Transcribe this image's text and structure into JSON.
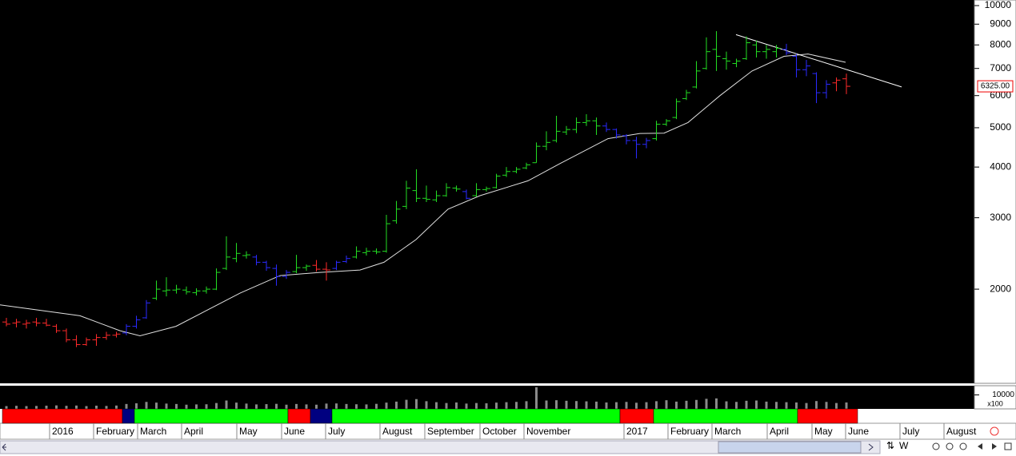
{
  "chart_data": {
    "type": "ohlc",
    "scale": "log",
    "x": [
      0,
      1,
      2,
      3,
      4,
      5,
      6,
      7,
      8,
      9,
      10,
      11,
      12,
      13,
      14,
      15,
      16,
      17,
      18,
      19,
      20,
      21,
      22,
      23,
      24,
      25,
      26,
      27,
      28,
      29,
      30,
      31,
      32,
      33,
      34,
      35,
      36,
      37,
      38,
      39,
      40,
      41,
      42,
      43,
      44,
      45,
      46,
      47,
      48,
      49,
      50,
      51,
      52,
      53,
      54,
      55,
      56,
      57,
      58,
      59,
      60,
      61,
      62,
      63,
      64,
      65,
      66,
      67,
      68,
      69,
      70,
      71,
      72,
      73,
      74,
      75,
      76,
      77,
      78,
      79,
      80,
      81,
      82,
      83,
      84
    ],
    "ohlc": [
      [
        1660,
        1700,
        1620,
        1640
      ],
      [
        1650,
        1690,
        1610,
        1660
      ],
      [
        1640,
        1680,
        1600,
        1650
      ],
      [
        1660,
        1700,
        1620,
        1650
      ],
      [
        1650,
        1690,
        1620,
        1630
      ],
      [
        1620,
        1640,
        1560,
        1580
      ],
      [
        1580,
        1600,
        1480,
        1500
      ],
      [
        1500,
        1540,
        1440,
        1460
      ],
      [
        1460,
        1520,
        1450,
        1500
      ],
      [
        1500,
        1550,
        1450,
        1520
      ],
      [
        1520,
        1570,
        1500,
        1540
      ],
      [
        1540,
        1570,
        1520,
        1550
      ],
      [
        1560,
        1640,
        1540,
        1620
      ],
      [
        1620,
        1720,
        1600,
        1680
      ],
      [
        1700,
        1880,
        1690,
        1850
      ],
      [
        1900,
        2100,
        1880,
        2000
      ],
      [
        1980,
        2140,
        1920,
        1990
      ],
      [
        1990,
        2050,
        1950,
        2000
      ],
      [
        1990,
        2030,
        1940,
        1970
      ],
      [
        1960,
        2010,
        1930,
        1980
      ],
      [
        1980,
        2030,
        1950,
        2000
      ],
      [
        2000,
        2250,
        1990,
        2200
      ],
      [
        2250,
        2700,
        2230,
        2400
      ],
      [
        2380,
        2600,
        2330,
        2450
      ],
      [
        2420,
        2480,
        2380,
        2430
      ],
      [
        2400,
        2430,
        2290,
        2330
      ],
      [
        2330,
        2350,
        2220,
        2260
      ],
      [
        2250,
        2300,
        2040,
        2150
      ],
      [
        2150,
        2230,
        2120,
        2200
      ],
      [
        2210,
        2430,
        2190,
        2260
      ],
      [
        2260,
        2300,
        2220,
        2280
      ],
      [
        2290,
        2360,
        2210,
        2240
      ],
      [
        2240,
        2330,
        2100,
        2230
      ],
      [
        2250,
        2350,
        2230,
        2330
      ],
      [
        2340,
        2420,
        2320,
        2380
      ],
      [
        2400,
        2550,
        2380,
        2480
      ],
      [
        2460,
        2530,
        2420,
        2480
      ],
      [
        2480,
        2520,
        2440,
        2470
      ],
      [
        2480,
        3050,
        2460,
        2900
      ],
      [
        2950,
        3300,
        2900,
        3150
      ],
      [
        3200,
        3700,
        3150,
        3550
      ],
      [
        3500,
        3950,
        3280,
        3350
      ],
      [
        3350,
        3600,
        3280,
        3330
      ],
      [
        3320,
        3500,
        3280,
        3400
      ],
      [
        3400,
        3650,
        3380,
        3560
      ],
      [
        3550,
        3600,
        3480,
        3530
      ],
      [
        3480,
        3520,
        3330,
        3350
      ],
      [
        3400,
        3650,
        3380,
        3520
      ],
      [
        3520,
        3580,
        3480,
        3540
      ],
      [
        3560,
        3850,
        3540,
        3800
      ],
      [
        3820,
        4000,
        3780,
        3900
      ],
      [
        3900,
        4000,
        3860,
        3950
      ],
      [
        3980,
        4100,
        3950,
        4050
      ],
      [
        4100,
        4600,
        4100,
        4500
      ],
      [
        4500,
        4900,
        4400,
        4600
      ],
      [
        4650,
        5350,
        4600,
        4900
      ],
      [
        4880,
        5050,
        4800,
        4950
      ],
      [
        4950,
        5300,
        4850,
        5150
      ],
      [
        5150,
        5400,
        5050,
        5200
      ],
      [
        5200,
        5300,
        4800,
        5050
      ],
      [
        5050,
        5150,
        4880,
        4950
      ],
      [
        4950,
        4980,
        4700,
        4800
      ],
      [
        4780,
        4820,
        4550,
        4650
      ],
      [
        4650,
        4750,
        4200,
        4550
      ],
      [
        4550,
        4720,
        4450,
        4650
      ],
      [
        4700,
        5200,
        4650,
        5100
      ],
      [
        5100,
        5250,
        5050,
        5200
      ],
      [
        5300,
        5900,
        5250,
        5800
      ],
      [
        5900,
        6200,
        5850,
        6100
      ],
      [
        6300,
        7300,
        6250,
        6900
      ],
      [
        7000,
        8350,
        6950,
        7700
      ],
      [
        7800,
        8650,
        6900,
        7500
      ],
      [
        7400,
        7700,
        6950,
        7300
      ],
      [
        7200,
        7400,
        7050,
        7300
      ],
      [
        7400,
        8400,
        7350,
        8100
      ],
      [
        8000,
        8200,
        7450,
        7700
      ],
      [
        7700,
        8000,
        7400,
        7800
      ],
      [
        7700,
        8000,
        7450,
        7850
      ],
      [
        7800,
        8050,
        7550,
        7650
      ],
      [
        7500,
        7600,
        6650,
        6950
      ],
      [
        6950,
        7350,
        6700,
        7100
      ],
      [
        6800,
        6850,
        5750,
        6100
      ],
      [
        6100,
        6550,
        5900,
        6400
      ],
      [
        6450,
        6650,
        6150,
        6550
      ],
      [
        6600,
        6800,
        6050,
        6325
      ]
    ],
    "bar_colors": "rrrrrrrrrrrrbbbggggggggggbbbbggrrbbgggggggggggbgggggggggggggbbbbbgggggggggggggbbbbbrr",
    "palette": {
      "g": "#22dd22",
      "b": "#2a2aff",
      "r": "#ff2a2a"
    },
    "xlim": [
      -0.64,
      96.8
    ],
    "ylim": [
      1172,
      10323
    ],
    "yticks": [
      2000,
      3000,
      4000,
      5000,
      6000,
      7000,
      8000,
      9000,
      10000
    ],
    "xticks": [
      {
        "value": 4.32,
        "label": "2016"
      },
      {
        "value": 8.72,
        "label": "February"
      },
      {
        "value": 13.12,
        "label": "March"
      },
      {
        "value": 17.52,
        "label": "April"
      },
      {
        "value": 23.04,
        "label": "May"
      },
      {
        "value": 27.52,
        "label": "June"
      },
      {
        "value": 31.92,
        "label": "July"
      },
      {
        "value": 37.36,
        "label": "August"
      },
      {
        "value": 41.84,
        "label": "September"
      },
      {
        "value": 47.36,
        "label": "October"
      },
      {
        "value": 51.76,
        "label": "November"
      },
      {
        "value": 61.76,
        "label": "2017"
      },
      {
        "value": 66.16,
        "label": "February"
      },
      {
        "value": 70.56,
        "label": "March"
      },
      {
        "value": 76.08,
        "label": "April"
      },
      {
        "value": 80.56,
        "label": "May"
      },
      {
        "value": 83.92,
        "label": "June"
      },
      {
        "value": 89.36,
        "label": "July"
      },
      {
        "value": 93.76,
        "label": "August"
      }
    ],
    "moving_average": {
      "color": "#e0e0e0",
      "x": [
        -0.64,
        7.36,
        11.36,
        13.36,
        16.96,
        20.16,
        23.36,
        27.36,
        31.36,
        35.36,
        37.76,
        40.96,
        44.16,
        47.36,
        52.16,
        55.36,
        60.16,
        63.36,
        65.76,
        68.16,
        71.36,
        74.56,
        77.76,
        80.16,
        83.92
      ],
      "values": [
        1830,
        1720,
        1580,
        1535,
        1620,
        1780,
        1955,
        2160,
        2200,
        2230,
        2330,
        2650,
        3150,
        3400,
        3700,
        4080,
        4700,
        4840,
        4850,
        5150,
        6000,
        6900,
        7500,
        7600,
        7250
      ]
    },
    "trendline": {
      "color": "#ffffff",
      "x": [
        72.96,
        89.52
      ],
      "values": [
        8480,
        6300
      ]
    },
    "last_price": {
      "value": 6325,
      "label": "6325.00"
    },
    "volume": {
      "color": "#8a8a8a",
      "ylim": [
        0,
        16000
      ],
      "yticks": [
        10000
      ],
      "unit": "x100",
      "values": [
        2000,
        2200,
        2000,
        2100,
        2300,
        2500,
        2200,
        2400,
        2000,
        2300,
        2100,
        2400,
        3500,
        4000,
        5000,
        4500,
        3800,
        3500,
        3000,
        3200,
        3300,
        4200,
        6000,
        4500,
        3800,
        3200,
        3400,
        3600,
        3000,
        3500,
        3200,
        3000,
        3800,
        3900,
        3500,
        3300,
        3200,
        3600,
        4500,
        5200,
        6500,
        7000,
        5500,
        4800,
        4200,
        4600,
        3800,
        4200,
        4000,
        4500,
        4800,
        5000,
        5500,
        15500,
        6000,
        6200,
        5800,
        5600,
        5400,
        5200,
        4600,
        4800,
        5000,
        4400,
        4800,
        5500,
        6200,
        5200,
        5800,
        6400,
        7200,
        7500,
        5400,
        5000,
        5800,
        6000,
        5200,
        5000,
        4800,
        4600,
        4200,
        5600,
        5000,
        4200,
        4600
      ]
    },
    "bands": [
      {
        "start": -0.4,
        "end": 11.6,
        "color": "#ff0000"
      },
      {
        "start": 11.6,
        "end": 12.8,
        "color": "#000080"
      },
      {
        "start": 12.8,
        "end": 28.16,
        "color": "#00ff00"
      },
      {
        "start": 28.16,
        "end": 30.4,
        "color": "#ff0000"
      },
      {
        "start": 30.4,
        "end": 32.56,
        "color": "#000080"
      },
      {
        "start": 32.56,
        "end": 61.36,
        "color": "#00ff00"
      },
      {
        "start": 61.36,
        "end": 64.72,
        "color": "#ff0000"
      },
      {
        "start": 64.72,
        "end": 79.12,
        "color": "#00ff00"
      },
      {
        "start": 79.12,
        "end": 85.12,
        "color": "#ff0000"
      }
    ]
  },
  "toolbar": {
    "labels": [
      "W"
    ]
  }
}
